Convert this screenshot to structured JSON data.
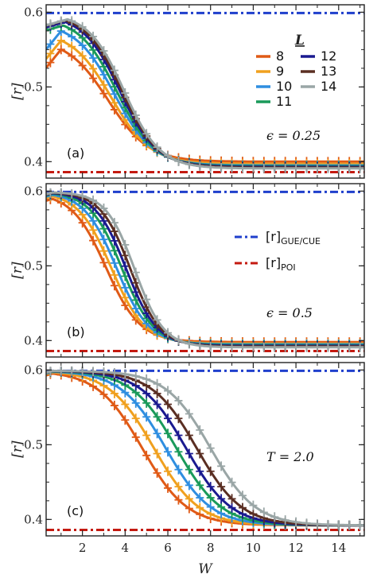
{
  "chart_data": [
    {
      "type": "line",
      "panel_label": "(a)",
      "annotation": "ϵ = 0.25",
      "ylabel": "[r]",
      "xlabel": "",
      "xlim": [
        0.3,
        15.2
      ],
      "ylim": [
        0.378,
        0.61
      ],
      "yticks": [
        "0.4",
        "0.5",
        "0.6"
      ],
      "reference_lines": [
        {
          "name": "[r]GUE/CUE",
          "y": 0.599,
          "color": "#1f3fcc"
        },
        {
          "name": "[r]POI",
          "y": 0.386,
          "color": "#c41a10"
        }
      ],
      "legend": {
        "title": "L",
        "entries": [
          "8",
          "9",
          "10",
          "11",
          "12",
          "13",
          "14"
        ]
      },
      "series": [
        {
          "name": "8",
          "color": "#e05a16",
          "params": {
            "rmax": 0.565,
            "Wc": 3.2,
            "w": 0.95,
            "inf": 0.4,
            "peakW": 1.0
          }
        },
        {
          "name": "9",
          "color": "#f0a01e",
          "params": {
            "rmax": 0.575,
            "Wc": 3.35,
            "w": 0.92,
            "inf": 0.397,
            "peakW": 1.0
          }
        },
        {
          "name": "10",
          "color": "#2f8ee0",
          "params": {
            "rmax": 0.586,
            "Wc": 3.5,
            "w": 0.9,
            "inf": 0.395,
            "peakW": 1.0
          }
        },
        {
          "name": "11",
          "color": "#1a9a5a",
          "params": {
            "rmax": 0.593,
            "Wc": 3.62,
            "w": 0.88,
            "inf": 0.394,
            "peakW": 1.1
          }
        },
        {
          "name": "12",
          "color": "#1a1a90",
          "params": {
            "rmax": 0.597,
            "Wc": 3.75,
            "w": 0.86,
            "inf": 0.393,
            "peakW": 1.2
          }
        },
        {
          "name": "13",
          "color": "#5a2e22",
          "params": {
            "rmax": 0.598,
            "Wc": 3.85,
            "w": 0.85,
            "inf": 0.392,
            "peakW": 1.2
          }
        },
        {
          "name": "14",
          "color": "#9aa6a6",
          "params": {
            "rmax": 0.599,
            "Wc": 3.95,
            "w": 0.84,
            "inf": 0.391,
            "peakW": 1.3
          }
        }
      ]
    },
    {
      "type": "line",
      "panel_label": "(b)",
      "annotation": "ϵ = 0.5",
      "ylabel": "[r]",
      "xlabel": "",
      "xlim": [
        0.3,
        15.2
      ],
      "ylim": [
        0.378,
        0.61
      ],
      "yticks": [
        "0.4",
        "0.5",
        "0.6"
      ],
      "reference_lines": [
        {
          "name": "[r]GUE/CUE",
          "y": 0.599,
          "color": "#1f3fcc"
        },
        {
          "name": "[r]POI",
          "y": 0.386,
          "color": "#c41a10"
        }
      ],
      "legend": {
        "entries": [
          {
            "main": "[r]",
            "sub": "GUE/CUE",
            "color": "#1f3fcc"
          },
          {
            "main": "[r]",
            "sub": "POI",
            "color": "#c41a10"
          }
        ]
      },
      "series": [
        {
          "name": "8",
          "color": "#e05a16",
          "params": {
            "rmax": 0.598,
            "Wc": 3.1,
            "w": 0.8,
            "inf": 0.398,
            "peakW": 0.6
          }
        },
        {
          "name": "9",
          "color": "#f0a01e",
          "params": {
            "rmax": 0.599,
            "Wc": 3.35,
            "w": 0.78,
            "inf": 0.396,
            "peakW": 0.6
          }
        },
        {
          "name": "10",
          "color": "#2f8ee0",
          "params": {
            "rmax": 0.599,
            "Wc": 3.6,
            "w": 0.76,
            "inf": 0.395,
            "peakW": 0.6
          }
        },
        {
          "name": "11",
          "color": "#1a9a5a",
          "params": {
            "rmax": 0.599,
            "Wc": 3.85,
            "w": 0.74,
            "inf": 0.394,
            "peakW": 0.6
          }
        },
        {
          "name": "12",
          "color": "#1a1a90",
          "params": {
            "rmax": 0.599,
            "Wc": 4.05,
            "w": 0.72,
            "inf": 0.393,
            "peakW": 0.6
          }
        },
        {
          "name": "13",
          "color": "#5a2e22",
          "params": {
            "rmax": 0.599,
            "Wc": 4.25,
            "w": 0.7,
            "inf": 0.392,
            "peakW": 0.6
          }
        },
        {
          "name": "14",
          "color": "#9aa6a6",
          "params": {
            "rmax": 0.599,
            "Wc": 4.45,
            "w": 0.68,
            "inf": 0.391,
            "peakW": 0.6
          }
        }
      ]
    },
    {
      "type": "line",
      "panel_label": "(c)",
      "annotation": "T = 2.0",
      "ylabel": "[r]",
      "xlabel": "W",
      "xlim": [
        0.3,
        15.2
      ],
      "ylim": [
        0.378,
        0.61
      ],
      "yticks": [
        "0.4",
        "0.5",
        "0.6"
      ],
      "xticks": [
        "2",
        "4",
        "6",
        "8",
        "10",
        "12",
        "14"
      ],
      "reference_lines": [
        {
          "name": "[r]GUE/CUE",
          "y": 0.599,
          "color": "#1f3fcc"
        },
        {
          "name": "[r]POI",
          "y": 0.386,
          "color": "#c41a10"
        }
      ],
      "series": [
        {
          "name": "8",
          "color": "#e05a16",
          "params": {
            "rmax": 0.599,
            "Wc": 4.8,
            "w": 1.05,
            "inf": 0.392,
            "peakW": 0.6
          }
        },
        {
          "name": "9",
          "color": "#f0a01e",
          "params": {
            "rmax": 0.599,
            "Wc": 5.35,
            "w": 1.05,
            "inf": 0.392,
            "peakW": 0.6
          }
        },
        {
          "name": "10",
          "color": "#2f8ee0",
          "params": {
            "rmax": 0.599,
            "Wc": 5.9,
            "w": 1.05,
            "inf": 0.392,
            "peakW": 0.6
          }
        },
        {
          "name": "11",
          "color": "#1a9a5a",
          "params": {
            "rmax": 0.599,
            "Wc": 6.4,
            "w": 1.05,
            "inf": 0.392,
            "peakW": 0.6
          }
        },
        {
          "name": "12",
          "color": "#1a1a90",
          "params": {
            "rmax": 0.599,
            "Wc": 6.85,
            "w": 1.05,
            "inf": 0.392,
            "peakW": 0.6
          }
        },
        {
          "name": "13",
          "color": "#5a2e22",
          "params": {
            "rmax": 0.599,
            "Wc": 7.35,
            "w": 1.05,
            "inf": 0.392,
            "peakW": 0.6
          }
        },
        {
          "name": "14",
          "color": "#9aa6a6",
          "params": {
            "rmax": 0.599,
            "Wc": 8.0,
            "w": 1.05,
            "inf": 0.392,
            "peakW": 0.6
          }
        }
      ]
    }
  ]
}
